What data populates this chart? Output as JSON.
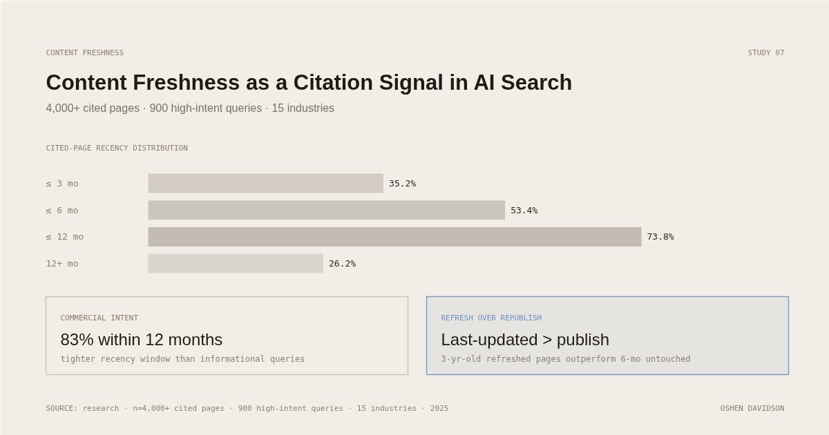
{
  "chart_data": [
    {
      "type": "bar",
      "orientation": "horizontal",
      "title": "Content Freshness as a Citation Signal in AI Search",
      "subtitle": "4,000+ cited pages · 900 high-intent queries · 15 industries",
      "categories": [
        "≤ 3 mo",
        "≤ 6 mo",
        "≤ 12 mo",
        "12+ mo"
      ],
      "values": [
        35.2,
        53.4,
        73.8,
        26.2
      ],
      "colors": [
        "#d2ccc4",
        "#cbc6bb",
        "#c2bcb5",
        "#dad5ce"
      ],
      "value_labels": [
        "35.2%",
        "53.4%",
        "73.8%",
        "26.2%"
      ],
      "annotations": [
        "CONTENT FRESHNESS",
        "STUDY 07",
        "CITED-PAGE RECENCY DISTRIBUTION",
        "SOURCE: research · n=4,000+ cited pages · 900 high-intent queries · 15 industries · 2025",
        "OSHEN DAVIDSON"
      ]
    },
    {
      "type": "other",
      "annotations": [
        "COMMERCIAL INTENT",
        "83% within 12 months",
        "tighter recency window than informational queries"
      ]
    },
    {
      "type": "other",
      "annotations": [
        "REFRESH OVER REPUBLISH",
        "Last-updated > publish",
        "3-yr-old refreshed pages outperform 6-mo untouched"
      ]
    }
  ]
}
